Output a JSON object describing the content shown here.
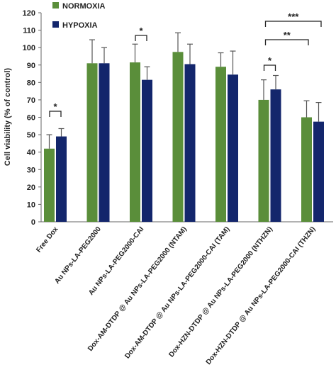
{
  "chart_data": {
    "type": "bar",
    "y_label": "Cell viability (% of control)",
    "categories": [
      "Free Dox",
      "Au NPs-LA-PEG2000",
      "Au NPs-LA-PEG2000-CAI",
      "Dox-AM-DTDP @ Au NPs-LA-PEG2000 (NTAM)",
      "Dox-AM-DTDP @ Au NPs-LA-PEG2000-CAI (TAM)",
      "Dox-HZN-DTDP @ Au NPs-LA-PEG2000 (NTHZN)",
      "Dox-HZN-DTDP @ Au NPs-LA-PEG2000-CAI (THZN)"
    ],
    "series": [
      {
        "name": "NORMOXIA",
        "color": "#5a8e3a",
        "values": [
          42,
          91,
          91.5,
          97.5,
          89,
          70,
          60
        ],
        "errors": [
          8,
          13.5,
          10.5,
          11,
          8,
          11.5,
          9.5
        ]
      },
      {
        "name": "HYPOXIA",
        "color": "#13266c",
        "values": [
          49,
          91,
          81.5,
          90.5,
          84.5,
          76,
          57.5
        ],
        "errors": [
          4.5,
          9,
          7.5,
          11.5,
          13.5,
          8,
          11
        ]
      }
    ],
    "annotations": [
      "*",
      "*",
      "*",
      "**",
      "***"
    ],
    "ylim": [
      0,
      120
    ],
    "yticks": [
      0,
      10,
      20,
      30,
      40,
      50,
      60,
      70,
      80,
      90,
      100,
      110,
      120
    ]
  }
}
